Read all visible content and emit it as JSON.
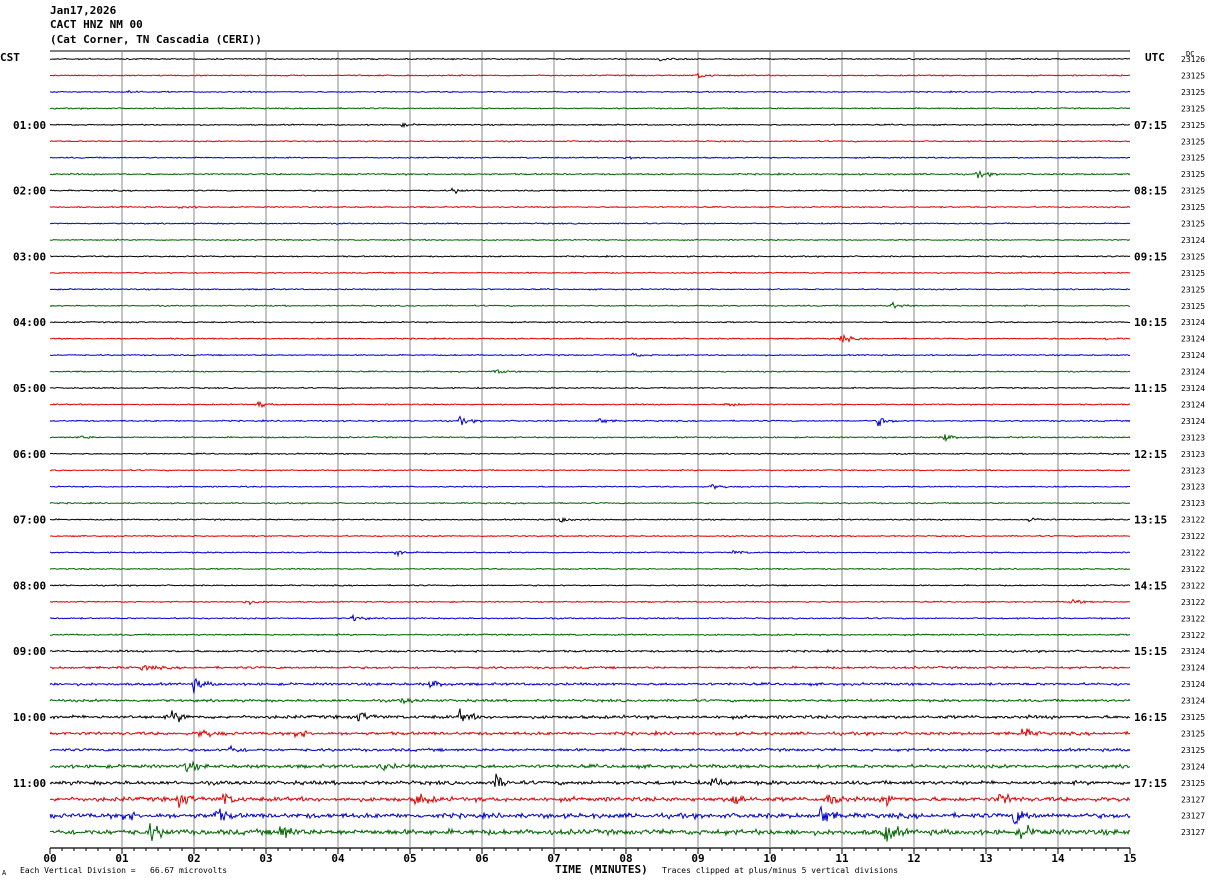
{
  "header": {
    "date": "Jan17,2026",
    "station": "CACT HNZ NM 00",
    "location": "(Cat Corner, TN Cascadia (CERI))"
  },
  "left_axis_label": "CST",
  "right_axis_label": "UTC",
  "dc_label": "DC",
  "footer": {
    "division": "Each Vertical Division =   66.67 microvolts",
    "clip": "Traces clipped at plus/minus 5 vertical divisions",
    "corner_mark": "A"
  },
  "colors": {
    "black": "#000000",
    "red": "#e00000",
    "blue": "#0000d0",
    "green": "#006400",
    "grid": "#888888"
  },
  "chart_data": {
    "type": "helicorder",
    "xlabel": "TIME (MINUTES)",
    "x_ticks": [
      "00",
      "01",
      "02",
      "03",
      "04",
      "05",
      "06",
      "07",
      "08",
      "09",
      "10",
      "11",
      "12",
      "13",
      "14",
      "15"
    ],
    "xlim": [
      0,
      15
    ],
    "left_hour_labels": [
      {
        "trace": 4,
        "text": "01:00"
      },
      {
        "trace": 8,
        "text": "02:00"
      },
      {
        "trace": 12,
        "text": "03:00"
      },
      {
        "trace": 16,
        "text": "04:00"
      },
      {
        "trace": 20,
        "text": "05:00"
      },
      {
        "trace": 24,
        "text": "06:00"
      },
      {
        "trace": 28,
        "text": "07:00"
      },
      {
        "trace": 32,
        "text": "08:00"
      },
      {
        "trace": 36,
        "text": "09:00"
      },
      {
        "trace": 40,
        "text": "10:00"
      },
      {
        "trace": 44,
        "text": "11:00"
      }
    ],
    "right_hour_labels": [
      {
        "trace": 4,
        "text": "07:15"
      },
      {
        "trace": 8,
        "text": "08:15"
      },
      {
        "trace": 12,
        "text": "09:15"
      },
      {
        "trace": 16,
        "text": "10:15"
      },
      {
        "trace": 20,
        "text": "11:15"
      },
      {
        "trace": 24,
        "text": "12:15"
      },
      {
        "trace": 28,
        "text": "13:15"
      },
      {
        "trace": 32,
        "text": "14:15"
      },
      {
        "trace": 36,
        "text": "15:15"
      },
      {
        "trace": 40,
        "text": "16:15"
      },
      {
        "trace": 44,
        "text": "17:15"
      }
    ],
    "trace_colors": [
      "black",
      "red",
      "blue",
      "green"
    ],
    "dc_offsets": [
      "23126",
      "23125",
      "23125",
      "23125",
      "23125",
      "23125",
      "23125",
      "23125",
      "23125",
      "23125",
      "23125",
      "23124",
      "23125",
      "23125",
      "23125",
      "23125",
      "23124",
      "23124",
      "23124",
      "23124",
      "23124",
      "23124",
      "23124",
      "23123",
      "23123",
      "23123",
      "23123",
      "23123",
      "23122",
      "23122",
      "23122",
      "23122",
      "23122",
      "23122",
      "23122",
      "23122",
      "23124",
      "23124",
      "23124",
      "23124",
      "23125",
      "23125",
      "23125",
      "23124",
      "23125",
      "23127",
      "23127",
      "23127"
    ],
    "noise_level": [
      1,
      1,
      1,
      1,
      1,
      1,
      1,
      1.2,
      1,
      1,
      1,
      1,
      1,
      1,
      1,
      1,
      1,
      1,
      1,
      1,
      1,
      1,
      1.1,
      1.1,
      1,
      1,
      1,
      1,
      1,
      1,
      1,
      1,
      1,
      1,
      1.1,
      1.2,
      1.6,
      1.8,
      2,
      2,
      2.6,
      2.4,
      2.2,
      2.8,
      3,
      3.4,
      3.8,
      4.2
    ],
    "events": [
      {
        "trace": 0,
        "minute": 8.5,
        "amp": 2
      },
      {
        "trace": 1,
        "minute": 9.0,
        "amp": 2.5
      },
      {
        "trace": 2,
        "minute": 1.1,
        "amp": 1.5
      },
      {
        "trace": 4,
        "minute": 4.9,
        "amp": 1.5
      },
      {
        "trace": 6,
        "minute": 8.0,
        "amp": 2.5
      },
      {
        "trace": 7,
        "minute": 12.9,
        "amp": 3.5
      },
      {
        "trace": 8,
        "minute": 5.6,
        "amp": 2.5
      },
      {
        "trace": 9,
        "minute": 1.8,
        "amp": 1.5
      },
      {
        "trace": 15,
        "minute": 11.7,
        "amp": 3.5
      },
      {
        "trace": 17,
        "minute": 11.0,
        "amp": 3.5
      },
      {
        "trace": 17,
        "minute": 14.7,
        "amp": 2
      },
      {
        "trace": 18,
        "minute": 8.1,
        "amp": 2
      },
      {
        "trace": 19,
        "minute": 6.2,
        "amp": 2
      },
      {
        "trace": 21,
        "minute": 2.9,
        "amp": 3
      },
      {
        "trace": 21,
        "minute": 9.4,
        "amp": 3
      },
      {
        "trace": 22,
        "minute": 5.7,
        "amp": 3.5
      },
      {
        "trace": 22,
        "minute": 7.6,
        "amp": 3
      },
      {
        "trace": 22,
        "minute": 11.5,
        "amp": 4.5
      },
      {
        "trace": 23,
        "minute": 12.4,
        "amp": 4
      },
      {
        "trace": 23,
        "minute": 0.4,
        "amp": 1.5
      },
      {
        "trace": 26,
        "minute": 9.2,
        "amp": 2.5
      },
      {
        "trace": 28,
        "minute": 7.1,
        "amp": 3
      },
      {
        "trace": 28,
        "minute": 13.6,
        "amp": 2.5
      },
      {
        "trace": 30,
        "minute": 4.8,
        "amp": 3
      },
      {
        "trace": 30,
        "minute": 9.5,
        "amp": 2
      },
      {
        "trace": 33,
        "minute": 2.7,
        "amp": 2.5
      },
      {
        "trace": 33,
        "minute": 14.2,
        "amp": 2.5
      },
      {
        "trace": 34,
        "minute": 4.2,
        "amp": 3
      },
      {
        "trace": 37,
        "minute": 1.3,
        "amp": 3
      },
      {
        "trace": 38,
        "minute": 2.0,
        "amp": 6
      },
      {
        "trace": 38,
        "minute": 5.3,
        "amp": 4
      },
      {
        "trace": 39,
        "minute": 4.9,
        "amp": 3
      },
      {
        "trace": 40,
        "minute": 1.7,
        "amp": 6
      },
      {
        "trace": 40,
        "minute": 4.3,
        "amp": 5
      },
      {
        "trace": 40,
        "minute": 5.7,
        "amp": 6
      },
      {
        "trace": 41,
        "minute": 2.1,
        "amp": 5
      },
      {
        "trace": 41,
        "minute": 3.4,
        "amp": 5
      },
      {
        "trace": 41,
        "minute": 13.5,
        "amp": 5
      },
      {
        "trace": 42,
        "minute": 2.5,
        "amp": 4
      },
      {
        "trace": 43,
        "minute": 1.9,
        "amp": 5
      },
      {
        "trace": 43,
        "minute": 4.6,
        "amp": 4
      },
      {
        "trace": 44,
        "minute": 6.2,
        "amp": 7
      },
      {
        "trace": 44,
        "minute": 9.2,
        "amp": 5
      },
      {
        "trace": 45,
        "minute": 1.8,
        "amp": 7
      },
      {
        "trace": 45,
        "minute": 2.4,
        "amp": 6
      },
      {
        "trace": 45,
        "minute": 5.1,
        "amp": 7
      },
      {
        "trace": 45,
        "minute": 9.5,
        "amp": 7
      },
      {
        "trace": 45,
        "minute": 10.8,
        "amp": 8
      },
      {
        "trace": 45,
        "minute": 11.6,
        "amp": 8
      },
      {
        "trace": 45,
        "minute": 13.2,
        "amp": 6
      },
      {
        "trace": 46,
        "minute": 1.0,
        "amp": 6
      },
      {
        "trace": 46,
        "minute": 2.3,
        "amp": 7
      },
      {
        "trace": 46,
        "minute": 10.7,
        "amp": 9
      },
      {
        "trace": 46,
        "minute": 13.4,
        "amp": 9
      },
      {
        "trace": 47,
        "minute": 1.4,
        "amp": 8
      },
      {
        "trace": 47,
        "minute": 3.2,
        "amp": 9
      },
      {
        "trace": 47,
        "minute": 11.6,
        "amp": 10
      },
      {
        "trace": 47,
        "minute": 13.5,
        "amp": 7
      }
    ]
  }
}
